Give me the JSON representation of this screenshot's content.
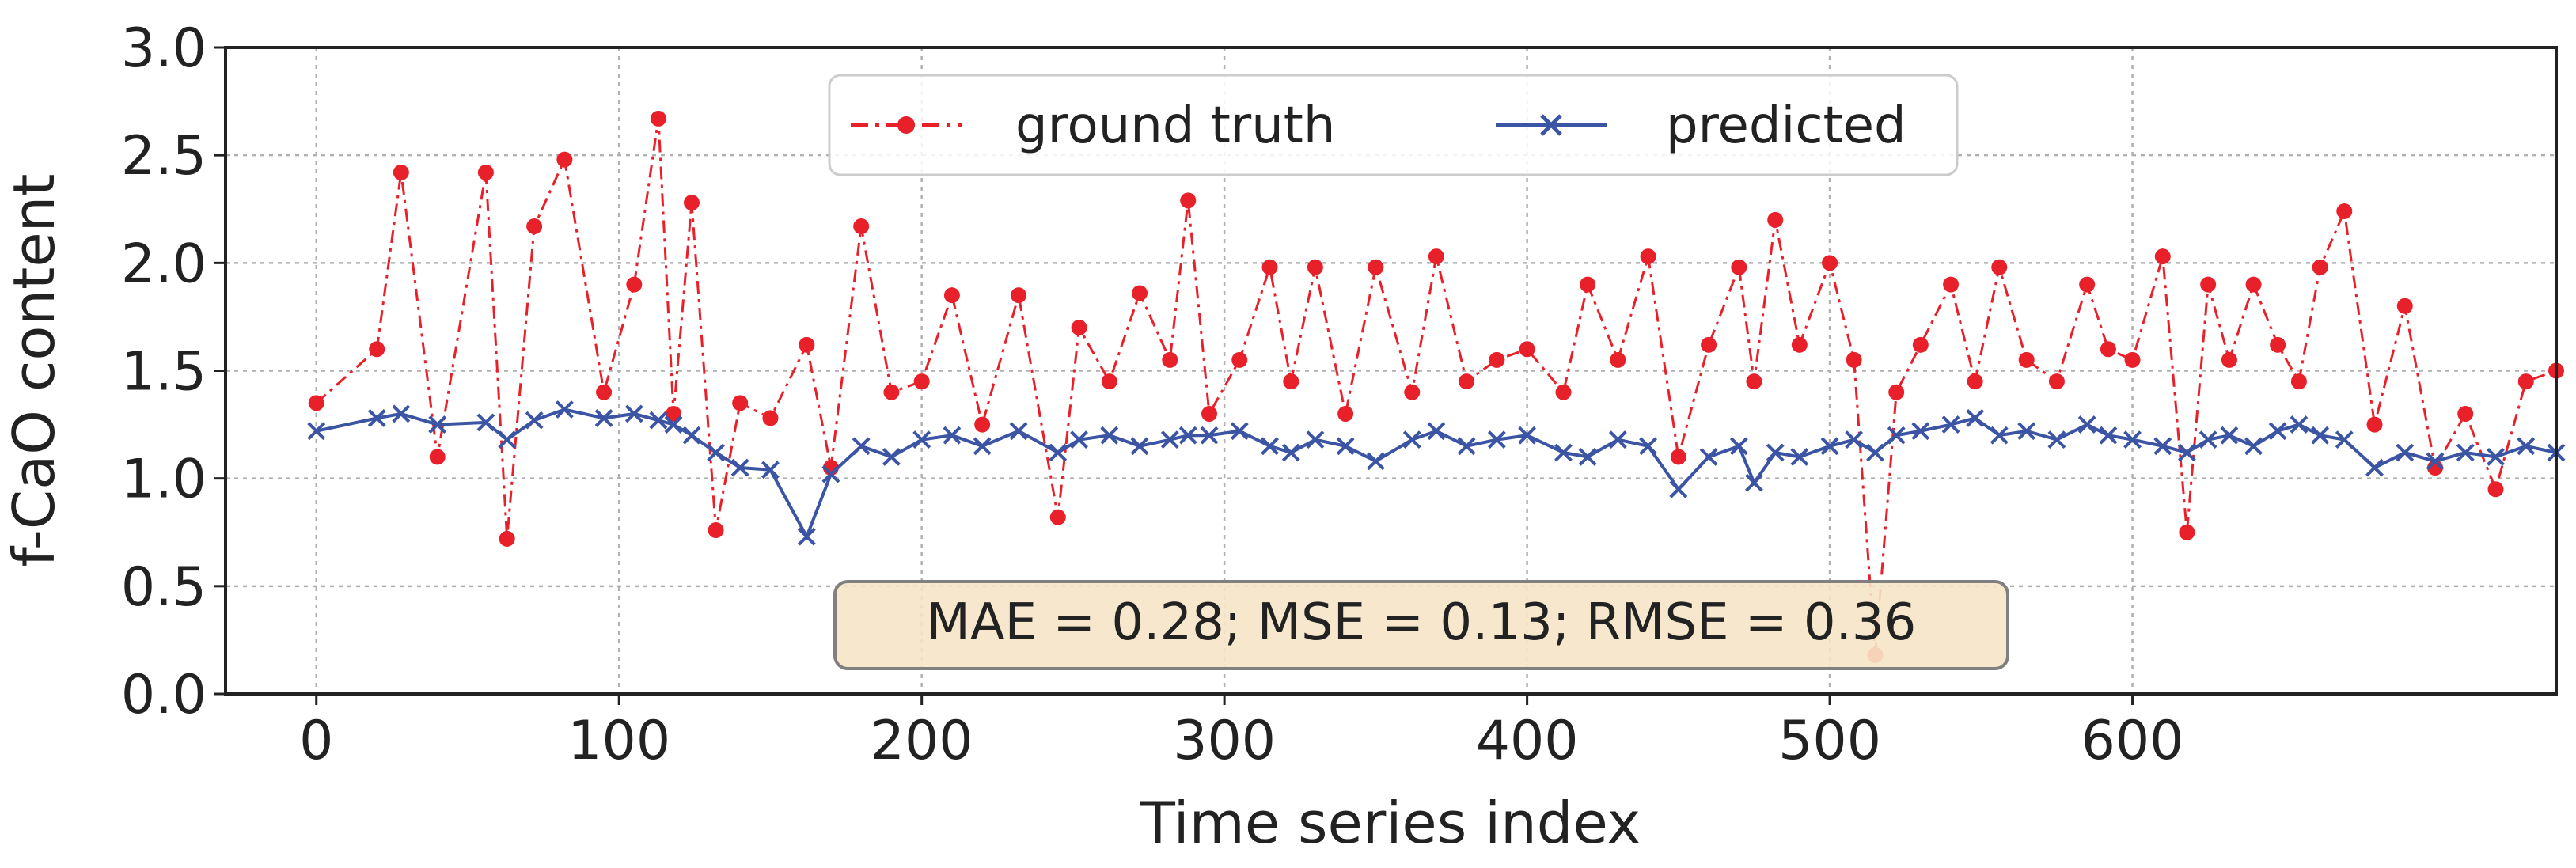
{
  "chart_data": {
    "type": "line",
    "title": "",
    "xlabel": "Time series index",
    "ylabel": "f-CaO content",
    "xlim": [
      -30,
      740
    ],
    "ylim": [
      0.0,
      3.0
    ],
    "xticks": [
      0,
      100,
      200,
      300,
      400,
      500,
      600
    ],
    "xtick_labels": [
      "0",
      "100",
      "200",
      "300",
      "400",
      "500",
      "600"
    ],
    "yticks": [
      0.0,
      0.5,
      1.0,
      1.5,
      2.0,
      2.5,
      3.0
    ],
    "ytick_labels": [
      "0.0",
      "0.5",
      "1.0",
      "1.5",
      "2.0",
      "2.5",
      "3.0"
    ],
    "grid": true,
    "legend": {
      "position": "top-center",
      "entries": [
        "ground truth",
        "predicted"
      ]
    },
    "annotation": "MAE = 0.28; MSE = 0.13; RMSE = 0.36",
    "series": [
      {
        "name": "ground truth",
        "color": "#e8202a",
        "linestyle": "dash-dot",
        "marker": "circle",
        "x": [
          0,
          20,
          28,
          40,
          56,
          63,
          72,
          82,
          95,
          105,
          113,
          118,
          124,
          132,
          140,
          150,
          162,
          170,
          180,
          190,
          200,
          210,
          220,
          232,
          245,
          252,
          262,
          272,
          282,
          288,
          295,
          305,
          315,
          322,
          330,
          340,
          350,
          362,
          370,
          380,
          390,
          400,
          412,
          420,
          430,
          440,
          450,
          460,
          470,
          475,
          482,
          490,
          500,
          508,
          515,
          522,
          530,
          540,
          548,
          556,
          565,
          575,
          585,
          592,
          600,
          610,
          618,
          625,
          632,
          640,
          648,
          655,
          662,
          670,
          680,
          690,
          700,
          710,
          720,
          730,
          740
        ],
        "y": [
          1.35,
          1.6,
          2.42,
          1.1,
          2.42,
          0.72,
          2.17,
          2.48,
          1.4,
          1.9,
          2.67,
          1.3,
          2.28,
          0.76,
          1.35,
          1.28,
          1.62,
          1.05,
          2.17,
          1.4,
          1.45,
          1.85,
          1.25,
          1.85,
          0.82,
          1.7,
          1.45,
          1.86,
          1.55,
          2.29,
          1.3,
          1.55,
          1.98,
          1.45,
          1.98,
          1.3,
          1.98,
          1.4,
          2.03,
          1.45,
          1.55,
          1.6,
          1.4,
          1.9,
          1.55,
          2.03,
          1.1,
          1.62,
          1.98,
          1.45,
          2.2,
          1.62,
          2.0,
          1.55,
          0.18,
          1.4,
          1.62,
          1.9,
          1.45,
          1.98,
          1.55,
          1.45,
          1.9,
          1.6,
          1.55,
          2.03,
          0.75,
          1.9,
          1.55,
          1.9,
          1.62,
          1.45,
          1.98,
          2.24,
          1.25,
          1.8,
          1.05,
          1.3,
          0.95,
          1.45,
          1.5
        ]
      },
      {
        "name": "predicted",
        "color": "#3b55a4",
        "linestyle": "solid",
        "marker": "x",
        "x": [
          0,
          20,
          28,
          40,
          56,
          63,
          72,
          82,
          95,
          105,
          113,
          118,
          124,
          132,
          140,
          150,
          162,
          170,
          180,
          190,
          200,
          210,
          220,
          232,
          245,
          252,
          262,
          272,
          282,
          288,
          295,
          305,
          315,
          322,
          330,
          340,
          350,
          362,
          370,
          380,
          390,
          400,
          412,
          420,
          430,
          440,
          450,
          460,
          470,
          475,
          482,
          490,
          500,
          508,
          515,
          522,
          530,
          540,
          548,
          556,
          565,
          575,
          585,
          592,
          600,
          610,
          618,
          625,
          632,
          640,
          648,
          655,
          662,
          670,
          680,
          690,
          700,
          710,
          720,
          730,
          740
        ],
        "y": [
          1.22,
          1.28,
          1.3,
          1.25,
          1.26,
          1.18,
          1.27,
          1.32,
          1.28,
          1.3,
          1.27,
          1.25,
          1.2,
          1.12,
          1.05,
          1.04,
          0.73,
          1.02,
          1.15,
          1.1,
          1.18,
          1.2,
          1.15,
          1.22,
          1.12,
          1.18,
          1.2,
          1.15,
          1.18,
          1.2,
          1.2,
          1.22,
          1.15,
          1.12,
          1.18,
          1.15,
          1.08,
          1.18,
          1.22,
          1.15,
          1.18,
          1.2,
          1.12,
          1.1,
          1.18,
          1.15,
          0.95,
          1.1,
          1.15,
          0.98,
          1.12,
          1.1,
          1.15,
          1.18,
          1.12,
          1.2,
          1.22,
          1.25,
          1.28,
          1.2,
          1.22,
          1.18,
          1.25,
          1.2,
          1.18,
          1.15,
          1.12,
          1.18,
          1.2,
          1.15,
          1.22,
          1.25,
          1.2,
          1.18,
          1.05,
          1.12,
          1.08,
          1.12,
          1.1,
          1.15,
          1.12
        ]
      }
    ]
  }
}
